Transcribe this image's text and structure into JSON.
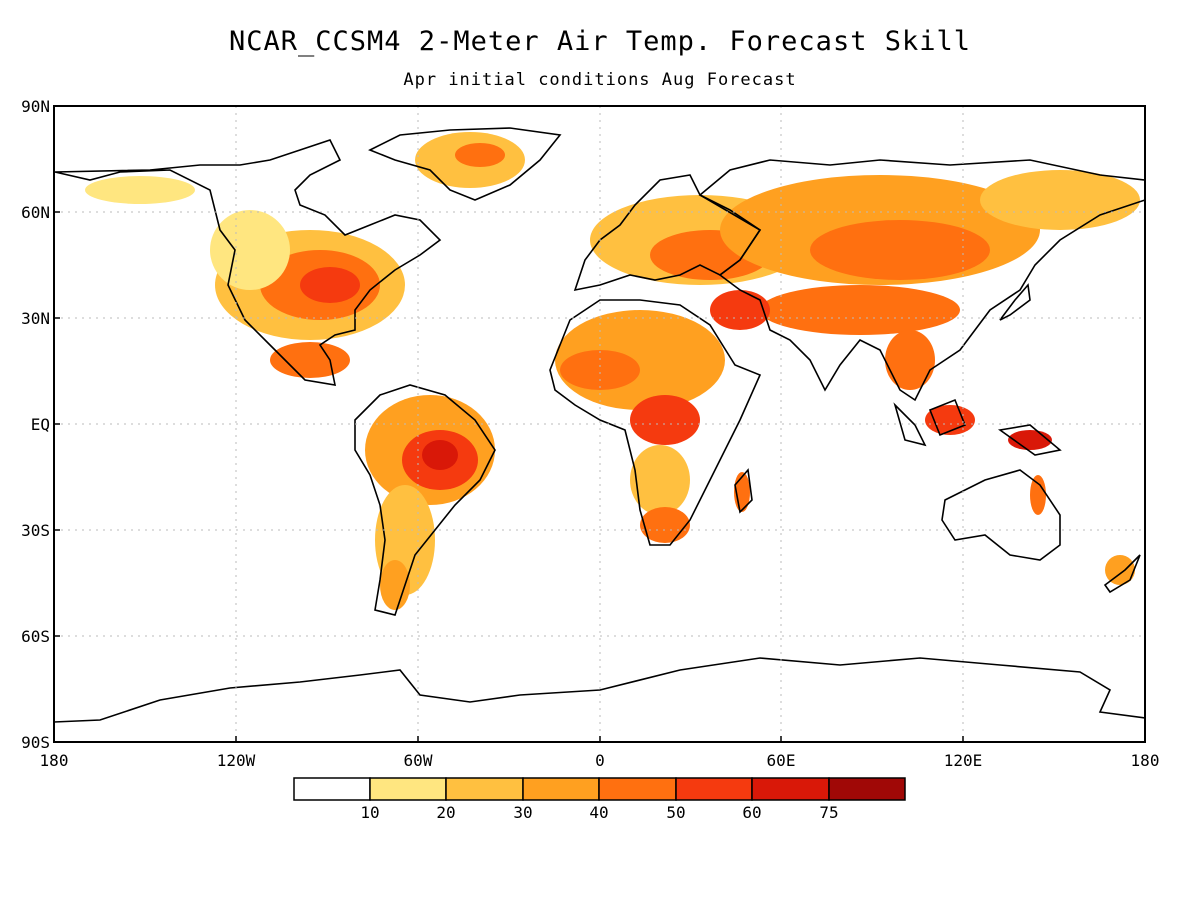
{
  "title": "NCAR_CCSM4 2-Meter Air Temp. Forecast Skill",
  "subtitle": "Apr initial conditions  Aug Forecast",
  "lat_labels": [
    "90N",
    "60N",
    "30N",
    "EQ",
    "30S",
    "60S",
    "90S"
  ],
  "lon_labels": [
    "180",
    "120W",
    "60W",
    "0",
    "60E",
    "120E",
    "180"
  ],
  "colorbar": {
    "colors": [
      "#ffffff",
      "#ffe680",
      "#ffc040",
      "#ffa020",
      "#ff7010",
      "#f53a0f",
      "#d91808",
      "#a00806"
    ],
    "labels": [
      "10",
      "20",
      "30",
      "40",
      "50",
      "60",
      "75"
    ]
  },
  "colors": {
    "land_outline": "#000000",
    "grid": "#bbbbbb",
    "ocean": "#ffffff"
  }
}
